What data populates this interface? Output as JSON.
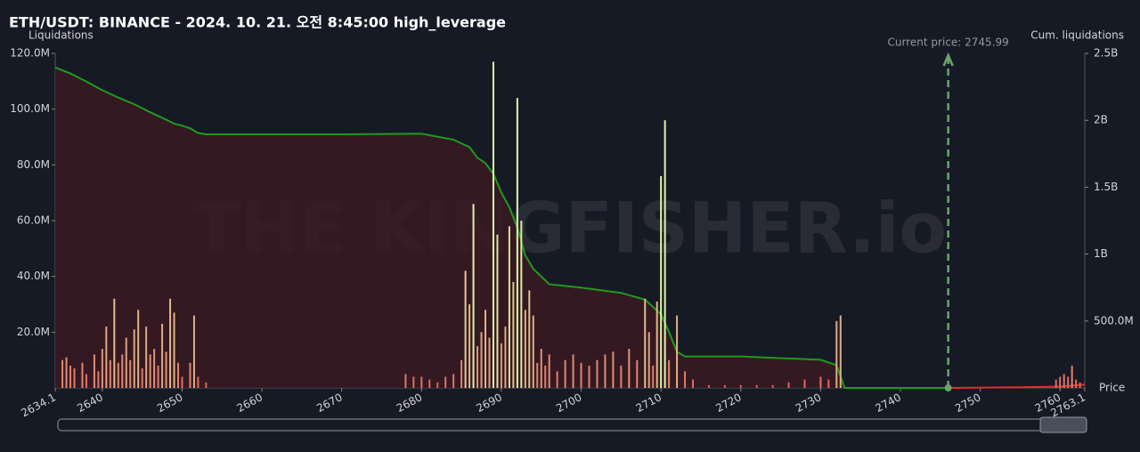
{
  "chart_data": {
    "type": "bar",
    "title": "ETH/USDT: BINANCE - 2024. 10. 21. 오전 8:45:00 high_leverage",
    "y_label": "Liquidations",
    "y2_label": "Cum. liquidations",
    "x_label": "Price",
    "watermark": "THE KINGFISHER.io",
    "annotation": {
      "text": "Current price: 2745.99",
      "x": 2745.99,
      "color": "#6aa56a"
    },
    "xlim": [
      2634.1,
      2763.1
    ],
    "xticks": [
      2634.1,
      2640,
      2650,
      2660,
      2670,
      2680,
      2690,
      2700,
      2710,
      2720,
      2730,
      2740,
      2750,
      2760,
      2763.1
    ],
    "ylim": [
      0,
      120
    ],
    "yticks": [
      {
        "value": 20,
        "label": "20.0M"
      },
      {
        "value": 40,
        "label": "40.0M"
      },
      {
        "value": 60,
        "label": "60.0M"
      },
      {
        "value": 80,
        "label": "80.0M"
      },
      {
        "value": 100,
        "label": "100.0M"
      },
      {
        "value": 120,
        "label": "120.0M"
      }
    ],
    "y2lim": [
      0,
      2500
    ],
    "y2ticks": [
      {
        "value": 500,
        "label": "500.0M"
      },
      {
        "value": 1000,
        "label": "1B"
      },
      {
        "value": 1500,
        "label": "1.5B"
      },
      {
        "value": 2000,
        "label": "2B"
      },
      {
        "value": 2500,
        "label": "2.5B"
      }
    ],
    "grid": false,
    "series": [
      {
        "type": "bar",
        "color": "#e0454f",
        "color_high": "#dff5a8",
        "x": [
          2635,
          2635.5,
          2636,
          2636.5,
          2637.5,
          2638,
          2639,
          2639.5,
          2640,
          2640.5,
          2641,
          2641.5,
          2642,
          2642.5,
          2643,
          2643.5,
          2644,
          2644.5,
          2645,
          2645.5,
          2646,
          2646.5,
          2647,
          2647.5,
          2648,
          2648.5,
          2649,
          2649.5,
          2650,
          2651,
          2651.5,
          2652,
          2653,
          2678,
          2679,
          2680,
          2681,
          2682,
          2683,
          2684,
          2685,
          2685.5,
          2686,
          2686.5,
          2687,
          2687.5,
          2688,
          2688.5,
          2689,
          2689.5,
          2690,
          2690.5,
          2691,
          2691.5,
          2692,
          2692.5,
          2693,
          2693.5,
          2694,
          2694.5,
          2695,
          2695.5,
          2696,
          2697,
          2698,
          2699,
          2700,
          2701,
          2702,
          2703,
          2704,
          2705,
          2706,
          2707,
          2708,
          2708.5,
          2709,
          2709.5,
          2710,
          2710.5,
          2711,
          2712,
          2713,
          2714,
          2716,
          2718,
          2720,
          2722,
          2724,
          2726,
          2728,
          2730,
          2731,
          2732,
          2732.5,
          2759.5,
          2760,
          2760.5,
          2761,
          2761.5,
          2762,
          2762.5
        ],
        "values": [
          10,
          11,
          8,
          7,
          9,
          5,
          12,
          6,
          14,
          22,
          10,
          32,
          9,
          12,
          18,
          10,
          21,
          28,
          7,
          22,
          12,
          14,
          8,
          23,
          13,
          32,
          27,
          9,
          4,
          9,
          26,
          4,
          2,
          5,
          4,
          4,
          3,
          2,
          4,
          5,
          10,
          42,
          30,
          66,
          15,
          20,
          28,
          18,
          117,
          55,
          16,
          22,
          58,
          38,
          104,
          60,
          28,
          35,
          26,
          9,
          14,
          8,
          12,
          6,
          10,
          12,
          9,
          8,
          10,
          12,
          13,
          8,
          14,
          10,
          32,
          20,
          8,
          31,
          76,
          96,
          10,
          26,
          6,
          3,
          1,
          1,
          1,
          1,
          1,
          2,
          3,
          4,
          3,
          24,
          26,
          3,
          4,
          5,
          4,
          8,
          3,
          2
        ]
      },
      {
        "type": "line",
        "axis": "y2",
        "color": "#1f9a1f",
        "fill": "#3a1a22",
        "x": [
          2634.1,
          2636,
          2638,
          2640,
          2642,
          2644,
          2646,
          2648,
          2649,
          2650,
          2651,
          2652,
          2653,
          2660,
          2670,
          2680,
          2684,
          2686,
          2687,
          2688,
          2689,
          2690,
          2691,
          2692,
          2693,
          2694,
          2696,
          2700,
          2705,
          2708,
          2710,
          2711,
          2712,
          2713,
          2720,
          2730,
          2732,
          2733,
          2745.99
        ],
        "values": [
          2395,
          2350,
          2290,
          2225,
          2170,
          2120,
          2060,
          2005,
          1975,
          1960,
          1940,
          1905,
          1895,
          1895,
          1895,
          1900,
          1855,
          1800,
          1720,
          1680,
          1600,
          1460,
          1350,
          1200,
          990,
          890,
          775,
          750,
          710,
          660,
          550,
          420,
          270,
          235,
          235,
          210,
          170,
          0,
          0
        ]
      },
      {
        "type": "line",
        "axis": "y2",
        "color": "#e0302a",
        "x": [
          2745.99,
          2755,
          2760,
          2763.1
        ],
        "values": [
          0,
          5,
          10,
          25
        ]
      }
    ]
  }
}
